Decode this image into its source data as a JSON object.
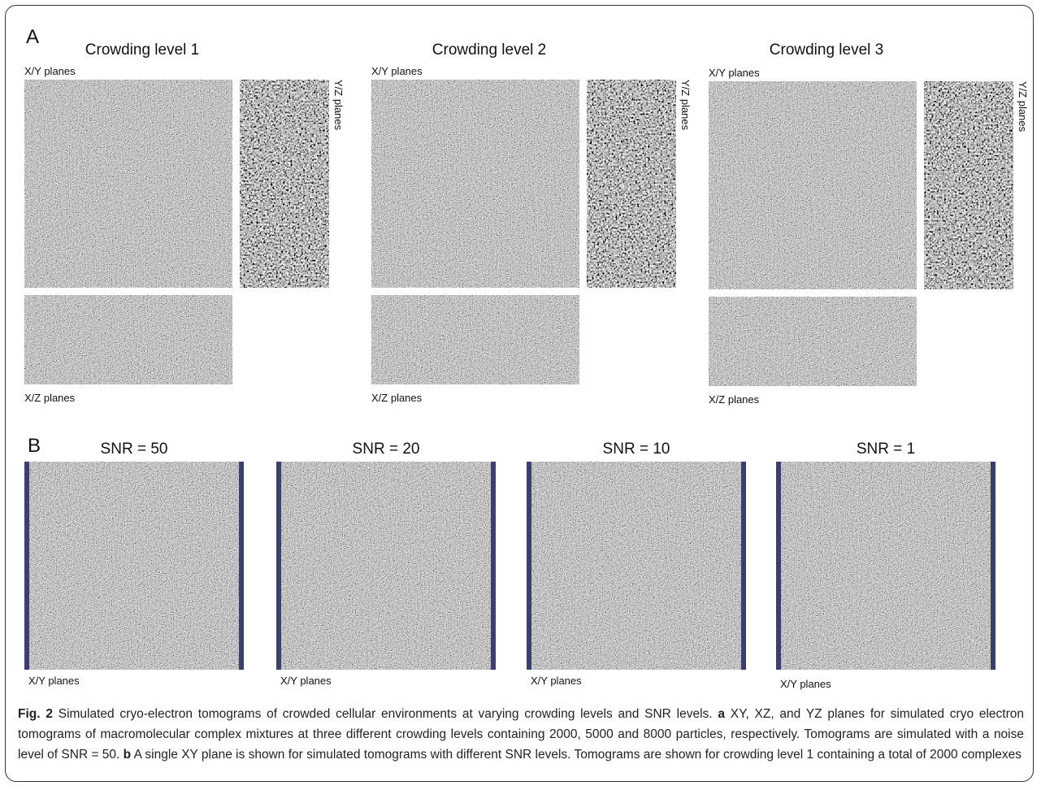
{
  "panel_a": {
    "label": "A",
    "columns": [
      {
        "title": "Crowding level 1",
        "xy_label": "X/Y planes",
        "yz_label": "Y/Z planes",
        "xz_label": "X/Z planes"
      },
      {
        "title": "Crowding level 2",
        "xy_label": "X/Y planes",
        "yz_label": "Y/Z planes",
        "xz_label": "X/Z planes"
      },
      {
        "title": "Crowding level 3",
        "xy_label": "X/Y planes",
        "yz_label": "Y/Z planes",
        "xz_label": "X/Z planes"
      }
    ]
  },
  "panel_b": {
    "label": "B",
    "columns": [
      {
        "title": "SNR = 50",
        "xy_label": "X/Y planes"
      },
      {
        "title": "SNR = 20",
        "xy_label": "X/Y planes"
      },
      {
        "title": "SNR = 10",
        "xy_label": "X/Y planes"
      },
      {
        "title": "SNR = 1",
        "xy_label": "X/Y planes"
      }
    ]
  },
  "caption": {
    "label": "Fig. 2",
    "intro": "Simulated cryo-electron tomograms of crowded cellular environments at varying crowding levels and SNR levels.",
    "parts": [
      {
        "label": "a",
        "text": "XY, XZ, and YZ planes for simulated cryo electron tomograms of macromolecular complex mixtures at three different crowding levels containing 2000, 5000 and 8000 particles, respectively. Tomograms are simulated with a noise level of SNR = 50."
      },
      {
        "label": "b",
        "text": "A single XY plane is shown for simulated tomograms with different SNR levels. Tomograms are shown for crowding level 1 containing a total of 2000 complexes"
      }
    ]
  }
}
